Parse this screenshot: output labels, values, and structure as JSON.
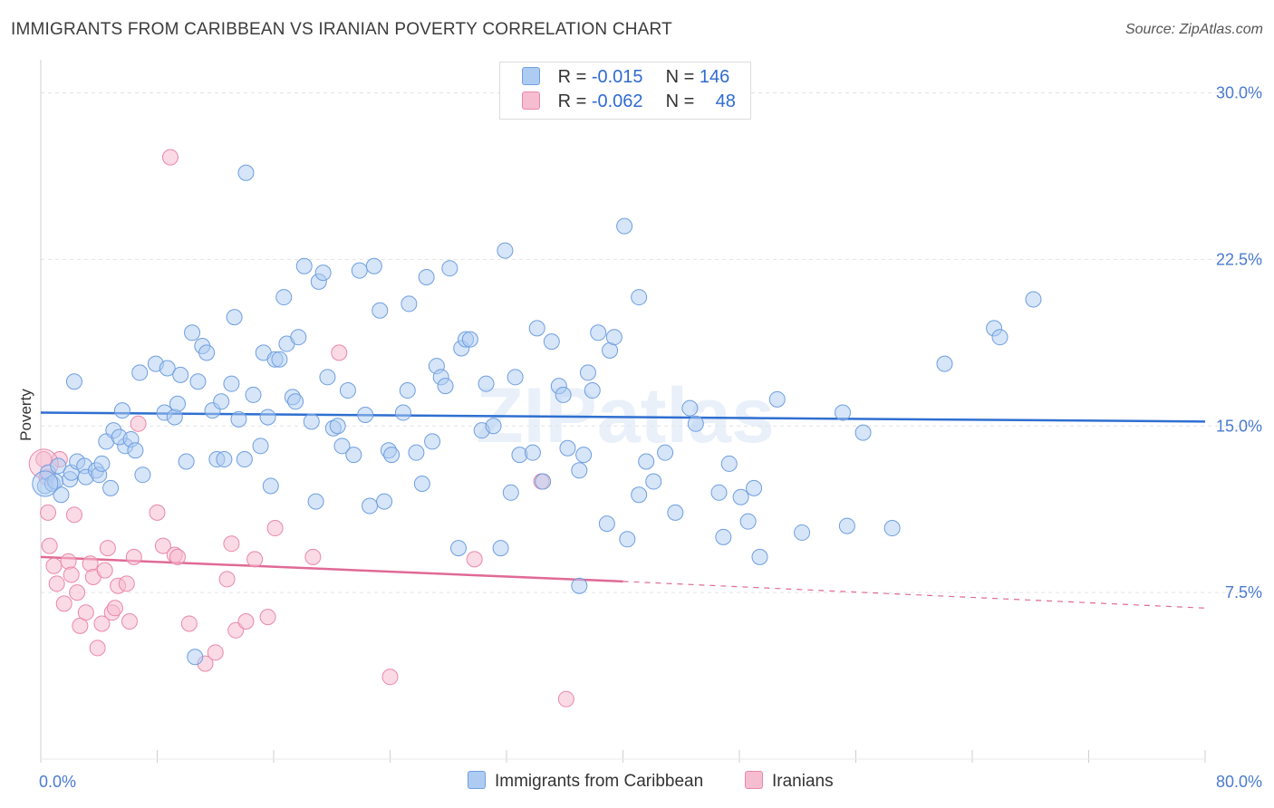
{
  "title": "IMMIGRANTS FROM CARIBBEAN VS IRANIAN POVERTY CORRELATION CHART",
  "source": "Source: ZipAtlas.com",
  "watermark": "ZIPatlas",
  "legend": {
    "rows": [
      {
        "r_label": "R =",
        "r_value": "-0.015",
        "n_label": "N =",
        "n_value": "146",
        "color": "#aecbf2"
      },
      {
        "r_label": "R =",
        "r_value": "-0.062",
        "n_label": "N =",
        "n_value": "48",
        "color": "#f6bcd0"
      }
    ]
  },
  "bottom_legend": [
    {
      "label": "Immigrants from Caribbean",
      "color": "#aecbf2"
    },
    {
      "label": "Iranians",
      "color": "#f6bcd0"
    }
  ],
  "colors": {
    "blue_fill": "#aecbf2",
    "blue_stroke": "#6f9fe0",
    "blue_line": "#2f6fd1",
    "pink_fill": "#f6bcd0",
    "pink_stroke": "#ea88a8",
    "pink_line": "#e06a95",
    "axis_label": "#4a7bd0",
    "grid": "#e4e4e4"
  },
  "chart_data": {
    "type": "scatter",
    "title": "IMMIGRANTS FROM CARIBBEAN VS IRANIAN POVERTY CORRELATION CHART",
    "ylabel": "Poverty",
    "xlim": [
      0,
      80
    ],
    "ylim": [
      0,
      31
    ],
    "x_tick_labels": [
      "0.0%",
      "80.0%"
    ],
    "y_ticks": [
      7.5,
      15.0,
      22.5,
      30.0
    ],
    "y_tick_labels": [
      "7.5%",
      "15.0%",
      "22.5%",
      "30.0%"
    ],
    "grid": "horizontal dashed",
    "series": [
      {
        "name": "Immigrants from Caribbean",
        "trend": {
          "x0": 0,
          "y0": 15.6,
          "x1": 80,
          "y1": 15.2
        },
        "points": [
          [
            0.3,
            12.3
          ],
          [
            0.5,
            12.9
          ],
          [
            0.8,
            12.4
          ],
          [
            1.0,
            12.5
          ],
          [
            1.2,
            13.2
          ],
          [
            1.4,
            11.9
          ],
          [
            2.0,
            12.6
          ],
          [
            2.1,
            12.9
          ],
          [
            2.5,
            13.4
          ],
          [
            2.3,
            17.0
          ],
          [
            3.0,
            13.2
          ],
          [
            3.1,
            12.7
          ],
          [
            3.8,
            13.0
          ],
          [
            4.0,
            12.8
          ],
          [
            4.2,
            13.3
          ],
          [
            4.8,
            12.2
          ],
          [
            4.5,
            14.3
          ],
          [
            5.0,
            14.8
          ],
          [
            5.6,
            15.7
          ],
          [
            5.8,
            14.1
          ],
          [
            5.4,
            14.5
          ],
          [
            6.2,
            14.4
          ],
          [
            6.5,
            13.9
          ],
          [
            6.8,
            17.4
          ],
          [
            7.0,
            12.8
          ],
          [
            7.9,
            17.8
          ],
          [
            8.5,
            15.6
          ],
          [
            8.7,
            17.6
          ],
          [
            9.2,
            15.4
          ],
          [
            9.4,
            16.0
          ],
          [
            9.6,
            17.3
          ],
          [
            10.0,
            13.4
          ],
          [
            10.4,
            19.2
          ],
          [
            10.8,
            17.0
          ],
          [
            11.1,
            18.6
          ],
          [
            11.4,
            18.3
          ],
          [
            11.8,
            15.7
          ],
          [
            12.1,
            13.5
          ],
          [
            12.4,
            16.1
          ],
          [
            12.6,
            13.5
          ],
          [
            13.1,
            16.9
          ],
          [
            13.3,
            19.9
          ],
          [
            13.6,
            15.3
          ],
          [
            14.0,
            13.5
          ],
          [
            14.1,
            26.4
          ],
          [
            14.6,
            16.4
          ],
          [
            15.1,
            14.1
          ],
          [
            15.3,
            18.3
          ],
          [
            15.6,
            15.4
          ],
          [
            15.8,
            12.3
          ],
          [
            16.1,
            18.0
          ],
          [
            16.4,
            18.0
          ],
          [
            16.7,
            20.8
          ],
          [
            16.9,
            18.7
          ],
          [
            17.3,
            16.3
          ],
          [
            17.5,
            16.1
          ],
          [
            17.7,
            19.0
          ],
          [
            18.1,
            22.2
          ],
          [
            18.6,
            15.2
          ],
          [
            18.9,
            11.6
          ],
          [
            19.1,
            21.5
          ],
          [
            19.4,
            21.9
          ],
          [
            19.7,
            17.2
          ],
          [
            20.1,
            14.9
          ],
          [
            20.4,
            15.0
          ],
          [
            20.7,
            14.1
          ],
          [
            21.1,
            16.6
          ],
          [
            21.5,
            13.7
          ],
          [
            21.9,
            22.0
          ],
          [
            22.3,
            15.5
          ],
          [
            22.6,
            11.4
          ],
          [
            22.9,
            22.2
          ],
          [
            23.3,
            20.2
          ],
          [
            23.6,
            11.6
          ],
          [
            23.9,
            13.9
          ],
          [
            24.1,
            13.7
          ],
          [
            24.9,
            15.6
          ],
          [
            25.3,
            20.5
          ],
          [
            25.2,
            16.6
          ],
          [
            25.8,
            13.8
          ],
          [
            26.2,
            12.4
          ],
          [
            26.5,
            21.7
          ],
          [
            26.9,
            14.3
          ],
          [
            27.2,
            17.7
          ],
          [
            27.5,
            17.2
          ],
          [
            27.8,
            16.8
          ],
          [
            28.1,
            22.1
          ],
          [
            28.7,
            9.5
          ],
          [
            28.9,
            18.5
          ],
          [
            29.2,
            18.9
          ],
          [
            29.5,
            18.9
          ],
          [
            30.3,
            14.8
          ],
          [
            30.6,
            16.9
          ],
          [
            31.1,
            15.0
          ],
          [
            31.6,
            9.5
          ],
          [
            31.9,
            22.9
          ],
          [
            32.3,
            12.0
          ],
          [
            32.6,
            17.2
          ],
          [
            32.9,
            13.7
          ],
          [
            33.8,
            13.8
          ],
          [
            34.1,
            19.4
          ],
          [
            34.5,
            12.5
          ],
          [
            35.1,
            18.8
          ],
          [
            35.6,
            16.8
          ],
          [
            35.9,
            16.4
          ],
          [
            36.2,
            14.0
          ],
          [
            37.0,
            7.8
          ],
          [
            37.0,
            13.0
          ],
          [
            37.3,
            13.7
          ],
          [
            37.6,
            17.4
          ],
          [
            37.9,
            16.6
          ],
          [
            38.3,
            19.2
          ],
          [
            38.9,
            10.6
          ],
          [
            39.1,
            18.4
          ],
          [
            39.4,
            19.0
          ],
          [
            40.1,
            24.0
          ],
          [
            40.3,
            9.9
          ],
          [
            41.1,
            20.8
          ],
          [
            41.1,
            11.9
          ],
          [
            41.6,
            13.4
          ],
          [
            42.1,
            12.5
          ],
          [
            42.9,
            13.8
          ],
          [
            43.6,
            11.1
          ],
          [
            44.6,
            15.8
          ],
          [
            45.0,
            15.1
          ],
          [
            46.6,
            12.0
          ],
          [
            46.9,
            10.0
          ],
          [
            47.3,
            13.3
          ],
          [
            48.1,
            11.8
          ],
          [
            48.6,
            10.7
          ],
          [
            49.0,
            12.2
          ],
          [
            49.4,
            9.1
          ],
          [
            50.6,
            16.2
          ],
          [
            52.3,
            10.2
          ],
          [
            55.1,
            15.6
          ],
          [
            55.4,
            10.5
          ],
          [
            56.5,
            14.7
          ],
          [
            58.5,
            10.4
          ],
          [
            62.1,
            17.8
          ],
          [
            65.5,
            19.4
          ],
          [
            65.9,
            19.0
          ],
          [
            68.2,
            20.7
          ],
          [
            10.6,
            4.6
          ]
        ]
      },
      {
        "name": "Iranians",
        "trend": {
          "x0": 0,
          "y0": 9.1,
          "x1": 40,
          "y1": 8.0,
          "dash_x1": 80,
          "dash_y1": 6.8
        },
        "points": [
          [
            0.2,
            13.5
          ],
          [
            0.4,
            12.7
          ],
          [
            0.5,
            11.1
          ],
          [
            0.6,
            9.6
          ],
          [
            0.9,
            8.7
          ],
          [
            1.1,
            7.9
          ],
          [
            1.3,
            13.5
          ],
          [
            1.6,
            7.0
          ],
          [
            1.9,
            8.9
          ],
          [
            2.1,
            8.3
          ],
          [
            2.3,
            11.0
          ],
          [
            2.5,
            7.5
          ],
          [
            2.7,
            6.0
          ],
          [
            3.1,
            6.6
          ],
          [
            3.4,
            8.8
          ],
          [
            3.6,
            8.2
          ],
          [
            3.9,
            5.0
          ],
          [
            4.2,
            6.1
          ],
          [
            4.4,
            8.5
          ],
          [
            4.6,
            9.5
          ],
          [
            4.9,
            6.6
          ],
          [
            5.1,
            6.8
          ],
          [
            5.3,
            7.8
          ],
          [
            5.9,
            7.9
          ],
          [
            6.1,
            6.2
          ],
          [
            6.4,
            9.1
          ],
          [
            6.7,
            15.1
          ],
          [
            8.0,
            11.1
          ],
          [
            8.4,
            9.6
          ],
          [
            8.9,
            27.1
          ],
          [
            9.2,
            9.2
          ],
          [
            9.4,
            9.1
          ],
          [
            10.2,
            6.1
          ],
          [
            11.3,
            4.3
          ],
          [
            12.0,
            4.8
          ],
          [
            12.8,
            8.1
          ],
          [
            13.1,
            9.7
          ],
          [
            13.4,
            5.8
          ],
          [
            14.1,
            6.2
          ],
          [
            14.7,
            9.0
          ],
          [
            15.6,
            6.4
          ],
          [
            16.1,
            10.4
          ],
          [
            18.7,
            9.1
          ],
          [
            20.5,
            18.3
          ],
          [
            24.0,
            3.7
          ],
          [
            29.8,
            9.0
          ],
          [
            34.4,
            12.5
          ],
          [
            36.1,
            2.7
          ]
        ]
      }
    ]
  }
}
